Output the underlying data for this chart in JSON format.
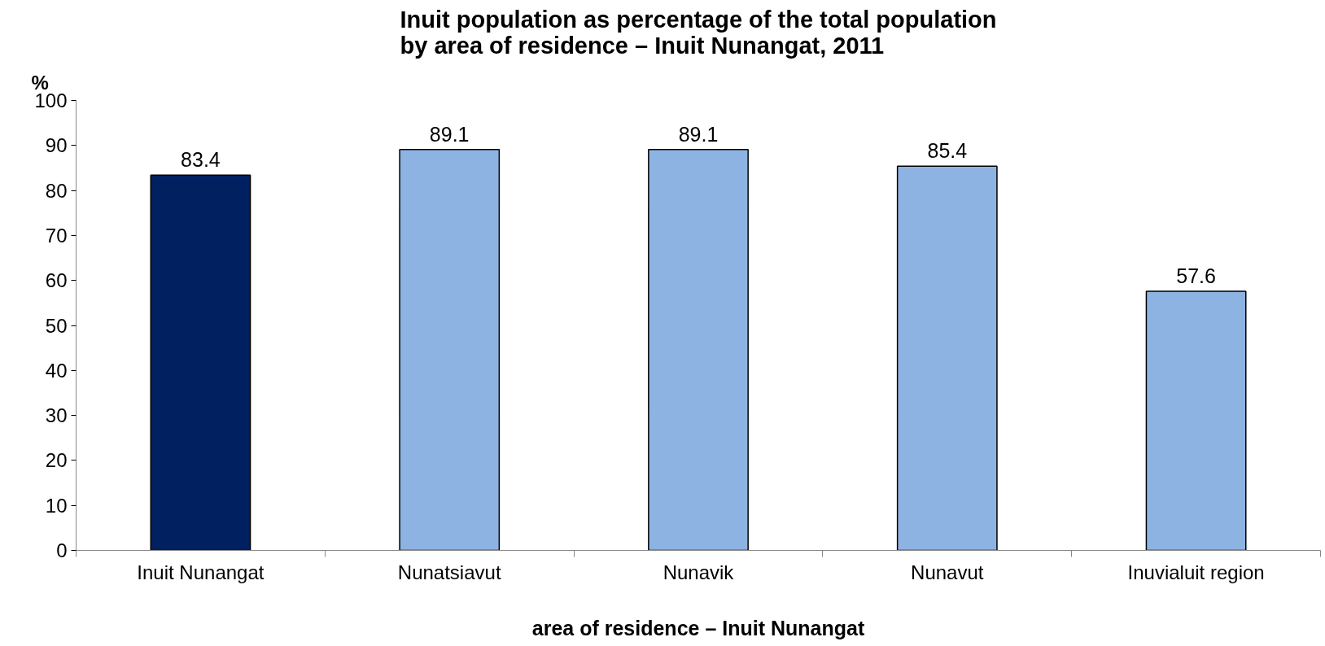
{
  "chart_data": {
    "type": "bar",
    "title": "Inuit population as percentage of the total population\nby area of residence – Inuit Nunangat, 2011",
    "xlabel": "area of residence – Inuit Nunangat",
    "ylabel": "%",
    "categories": [
      "Inuit Nunangat",
      "Nunatsiavut",
      "Nunavik",
      "Nunavut",
      "Inuvialuit region"
    ],
    "values": [
      83.4,
      89.1,
      89.1,
      85.4,
      57.6
    ],
    "colors": [
      "#002060",
      "#8db3e2",
      "#8db3e2",
      "#8db3e2",
      "#8db3e2"
    ],
    "ylim": [
      0,
      100
    ],
    "yticks": [
      0,
      10,
      20,
      30,
      40,
      50,
      60,
      70,
      80,
      90,
      100
    ],
    "grid": false,
    "data_labels": true
  }
}
